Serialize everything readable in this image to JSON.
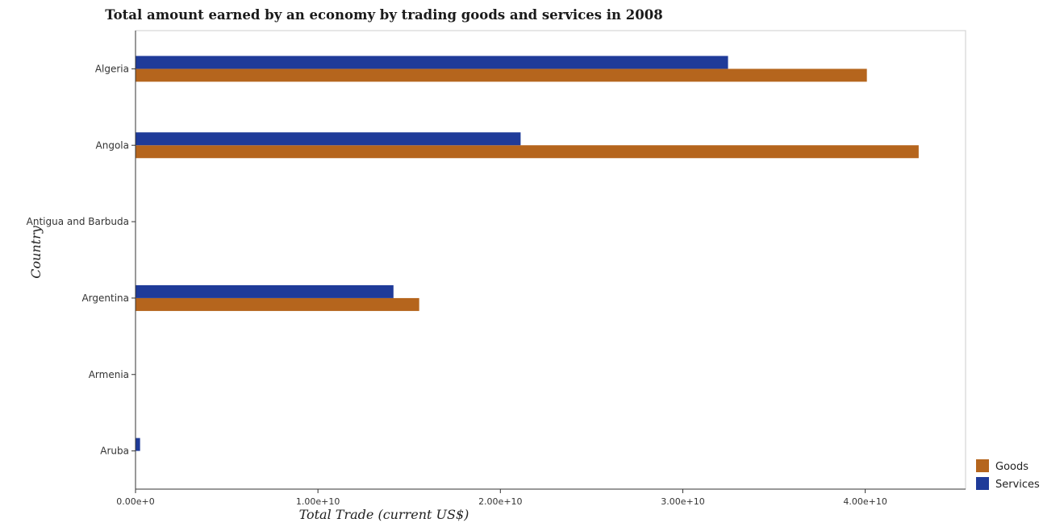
{
  "chart_data": {
    "type": "bar",
    "orientation": "horizontal",
    "title": "Total amount earned by an economy by trading goods and services in 2008",
    "xlabel": "Total Trade (current US$)",
    "ylabel": "Country",
    "xlim": [
      0,
      45500000000
    ],
    "x_ticks": [
      0,
      10000000000,
      20000000000,
      30000000000,
      40000000000
    ],
    "x_tick_labels": [
      "0.00e+0",
      "1.00e+10",
      "2.00e+10",
      "3.00e+10",
      "4.00e+10"
    ],
    "categories": [
      "Algeria",
      "Angola",
      "Antigua and Barbuda",
      "Argentina",
      "Armenia",
      "Aruba"
    ],
    "series": [
      {
        "name": "Goods",
        "color": "#b5651d",
        "values": [
          40090000000,
          42930000000,
          0,
          15550000000,
          0,
          0
        ]
      },
      {
        "name": "Services",
        "color": "#1f3b99",
        "values": [
          32480000000,
          21110000000,
          0,
          14140000000,
          0,
          250000000
        ]
      }
    ],
    "legend_position": "bottom-right",
    "grid": false
  }
}
